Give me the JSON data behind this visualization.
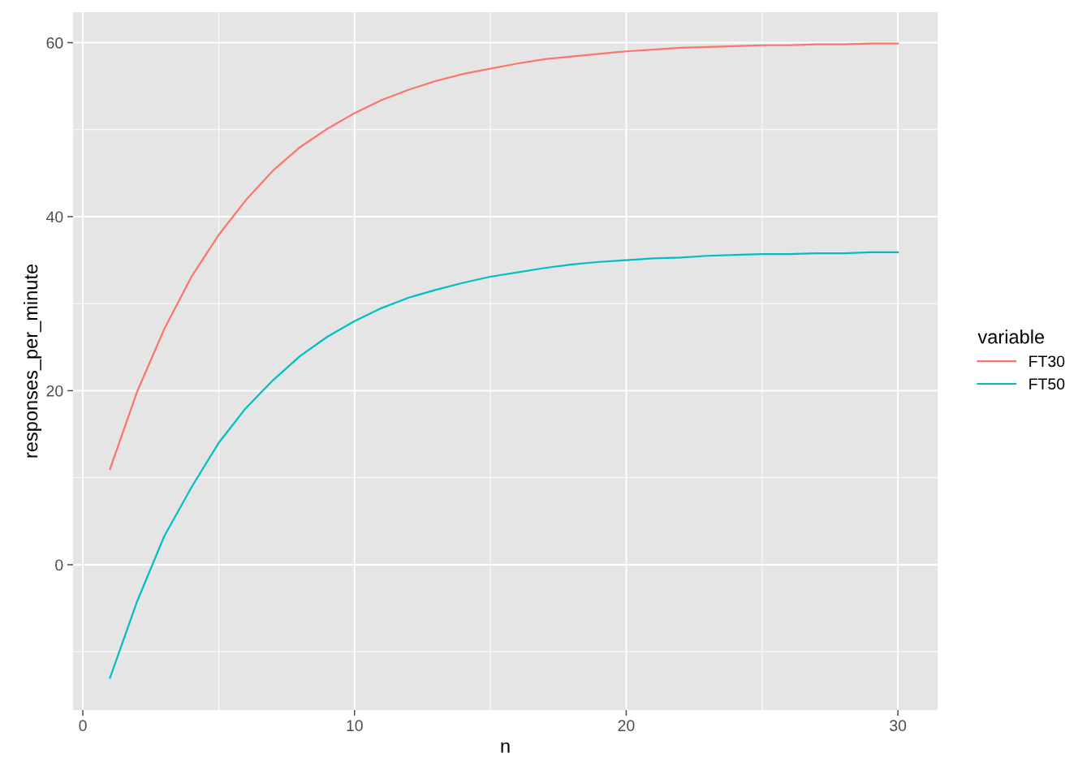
{
  "chart_data": {
    "type": "line",
    "xlabel": "n",
    "ylabel": "responses_per_minute",
    "legend_title": "variable",
    "x": [
      1,
      2,
      3,
      4,
      5,
      6,
      7,
      8,
      9,
      10,
      11,
      12,
      13,
      14,
      15,
      16,
      17,
      18,
      19,
      20,
      21,
      22,
      23,
      24,
      25,
      26,
      27,
      28,
      29,
      30
    ],
    "series": [
      {
        "name": "FT30",
        "color": "#f8766d",
        "values": [
          11.0,
          19.9,
          27.1,
          33.1,
          37.9,
          41.9,
          45.3,
          48.0,
          50.1,
          51.9,
          53.4,
          54.6,
          55.6,
          56.4,
          57.0,
          57.6,
          58.1,
          58.4,
          58.7,
          59.0,
          59.2,
          59.4,
          59.5,
          59.6,
          59.7,
          59.7,
          59.8,
          59.8,
          59.9,
          59.9
        ]
      },
      {
        "name": "FT50",
        "color": "#00bfc4",
        "values": [
          -13.0,
          -4.2,
          3.3,
          8.9,
          14.0,
          18.0,
          21.2,
          24.0,
          26.2,
          28.0,
          29.5,
          30.7,
          31.6,
          32.4,
          33.1,
          33.6,
          34.1,
          34.5,
          34.8,
          35.0,
          35.2,
          35.3,
          35.5,
          35.6,
          35.7,
          35.7,
          35.8,
          35.8,
          35.9,
          35.9
        ]
      }
    ],
    "xlim": [
      -0.36,
      31.46
    ],
    "ylim": [
      -16.7,
      63.5
    ],
    "xticks": [
      0,
      10,
      20,
      30
    ],
    "yticks": [
      0,
      20,
      40,
      60
    ],
    "grid": true,
    "legend": "right",
    "marker": "none",
    "line_style": "solid"
  }
}
